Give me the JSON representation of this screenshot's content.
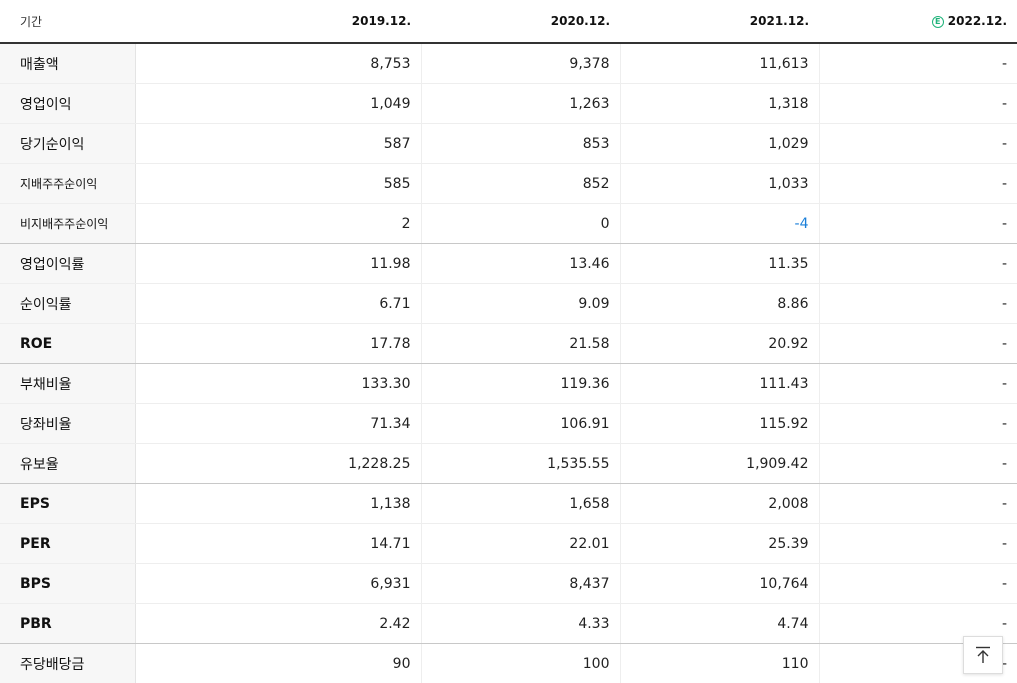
{
  "header": {
    "label": "기간",
    "estimate_mark": "E",
    "periods": [
      "2019.12.",
      "2020.12.",
      "2021.12.",
      "2022.12."
    ]
  },
  "rows": [
    {
      "label": "매출액",
      "values": [
        "8,753",
        "9,378",
        "11,613",
        "-"
      ]
    },
    {
      "label": "영업이익",
      "values": [
        "1,049",
        "1,263",
        "1,318",
        "-"
      ]
    },
    {
      "label": "당기순이익",
      "values": [
        "587",
        "853",
        "1,029",
        "-"
      ]
    },
    {
      "label": "지배주주순이익",
      "values": [
        "585",
        "852",
        "1,033",
        "-"
      ]
    },
    {
      "label": "비지배주주순이익",
      "values": [
        "2",
        "0",
        "-4",
        "-"
      ]
    },
    {
      "label": "영업이익률",
      "values": [
        "11.98",
        "13.46",
        "11.35",
        "-"
      ]
    },
    {
      "label": "순이익률",
      "values": [
        "6.71",
        "9.09",
        "8.86",
        "-"
      ]
    },
    {
      "label": "ROE",
      "values": [
        "17.78",
        "21.58",
        "20.92",
        "-"
      ]
    },
    {
      "label": "부채비율",
      "values": [
        "133.30",
        "119.36",
        "111.43",
        "-"
      ]
    },
    {
      "label": "당좌비율",
      "values": [
        "71.34",
        "106.91",
        "115.92",
        "-"
      ]
    },
    {
      "label": "유보율",
      "values": [
        "1,228.25",
        "1,535.55",
        "1,909.42",
        "-"
      ]
    },
    {
      "label": "EPS",
      "values": [
        "1,138",
        "1,658",
        "2,008",
        "-"
      ]
    },
    {
      "label": "PER",
      "values": [
        "14.71",
        "22.01",
        "25.39",
        "-"
      ]
    },
    {
      "label": "BPS",
      "values": [
        "6,931",
        "8,437",
        "10,764",
        "-"
      ]
    },
    {
      "label": "PBR",
      "values": [
        "2.42",
        "4.33",
        "4.74",
        "-"
      ]
    },
    {
      "label": "주당배당금",
      "values": [
        "90",
        "100",
        "110",
        "-"
      ]
    }
  ],
  "colors": {
    "negative": "#1a7fd9",
    "estimate_badge": "#1fb37a"
  },
  "icons": {
    "scroll_top": "arrow-up-to-line-icon"
  }
}
